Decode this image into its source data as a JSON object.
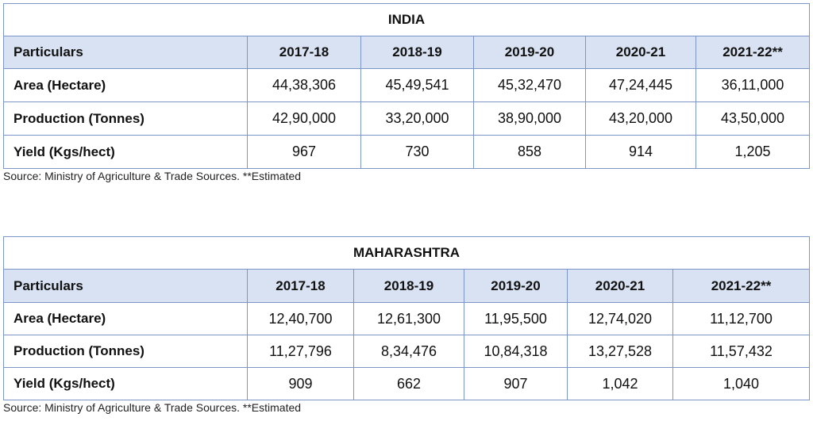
{
  "india": {
    "title": "INDIA",
    "headers": [
      "Particulars",
      "2017-18",
      "2018-19",
      "2019-20",
      "2020-21",
      "2021-22**"
    ],
    "rows": [
      [
        "Area (Hectare)",
        "44,38,306",
        "45,49,541",
        "45,32,470",
        "47,24,445",
        "36,11,000"
      ],
      [
        "Production (Tonnes)",
        "42,90,000",
        "33,20,000",
        "38,90,000",
        "43,20,000",
        "43,50,000"
      ],
      [
        "Yield (Kgs/hect)",
        "967",
        "730",
        "858",
        "914",
        "1,205"
      ]
    ],
    "source": "Source: Ministry of Agriculture & Trade Sources. **Estimated"
  },
  "maharashtra": {
    "title": "MAHARASHTRA",
    "headers": [
      "Particulars",
      "2017-18",
      "2018-19",
      "2019-20",
      "2020-21",
      "2021-22**"
    ],
    "rows": [
      [
        "Area (Hectare)",
        "12,40,700",
        "12,61,300",
        "11,95,500",
        "12,74,020",
        "11,12,700"
      ],
      [
        "Production (Tonnes)",
        "11,27,796",
        "8,34,476",
        "10,84,318",
        "13,27,528",
        "11,57,432"
      ],
      [
        "Yield (Kgs/hect)",
        "909",
        "662",
        "907",
        "1,042",
        "1,040"
      ]
    ],
    "source": "Source: Ministry of Agriculture & Trade Sources. **Estimated"
  }
}
